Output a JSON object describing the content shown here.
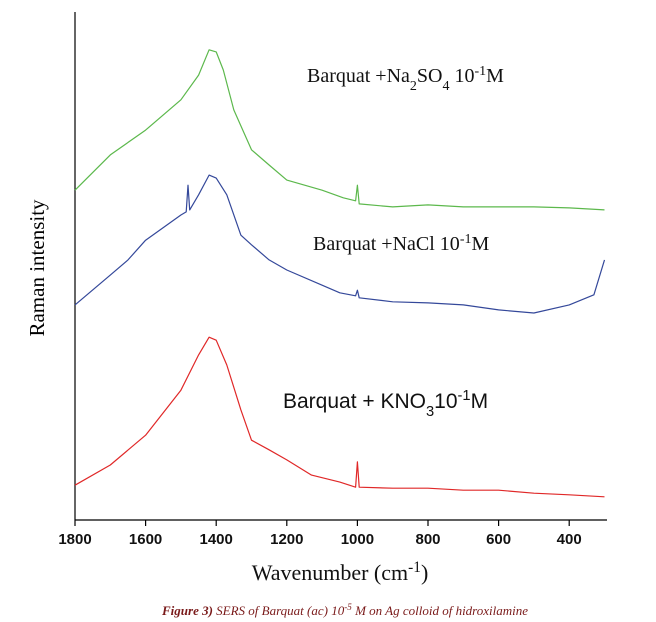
{
  "chart_data": {
    "type": "line",
    "x_label": {
      "parts": [
        {
          "text": "Wavenumber (cm"
        },
        {
          "text": "-1",
          "sup": true
        },
        {
          "text": ")"
        }
      ]
    },
    "y_label": "Raman intensity",
    "xlim": [
      1800,
      300
    ],
    "ylim": [
      0,
      100
    ],
    "xticks": [
      1800,
      1600,
      1400,
      1200,
      1000,
      800,
      600,
      400
    ],
    "series": [
      {
        "color": "#5cb84c",
        "x": [
          1800,
          1700,
          1600,
          1500,
          1450,
          1420,
          1400,
          1380,
          1350,
          1300,
          1250,
          1200,
          1100,
          1040,
          1005,
          1000,
          995,
          900,
          800,
          700,
          600,
          500,
          400,
          300
        ],
        "values": [
          65.3,
          72.3,
          77.2,
          83.2,
          88.1,
          93.1,
          92.7,
          89.1,
          81.2,
          73.3,
          70.3,
          67.3,
          65.3,
          63.8,
          63.2,
          66.3,
          62.6,
          62.0,
          62.4,
          62.0,
          62.0,
          62.0,
          61.8,
          61.4
        ]
      },
      {
        "color": "#34489a",
        "x": [
          1800,
          1700,
          1650,
          1600,
          1500,
          1485,
          1480,
          1475,
          1450,
          1420,
          1400,
          1370,
          1330,
          1300,
          1250,
          1200,
          1100,
          1050,
          1005,
          1000,
          995,
          900,
          800,
          700,
          600,
          500,
          400,
          330,
          300
        ],
        "values": [
          42.6,
          48.5,
          51.5,
          55.4,
          60.4,
          61.0,
          66.3,
          61.4,
          64.4,
          68.3,
          67.7,
          64.4,
          56.4,
          54.5,
          51.5,
          49.5,
          46.5,
          45.0,
          44.4,
          45.5,
          44.0,
          43.2,
          43.0,
          42.6,
          41.6,
          41.0,
          42.6,
          44.6,
          51.5
        ]
      },
      {
        "color": "#e02828",
        "x": [
          1800,
          1700,
          1600,
          1500,
          1450,
          1420,
          1400,
          1370,
          1330,
          1300,
          1250,
          1200,
          1130,
          1050,
          1005,
          1000,
          995,
          900,
          800,
          700,
          600,
          500,
          400,
          300
        ],
        "values": [
          6.9,
          10.9,
          16.8,
          25.7,
          32.7,
          36.2,
          35.6,
          30.7,
          21.8,
          15.8,
          13.9,
          11.9,
          8.9,
          7.5,
          6.5,
          11.5,
          6.5,
          6.3,
          6.3,
          5.9,
          5.9,
          5.3,
          5.0,
          4.6
        ]
      }
    ],
    "annotations": [
      {
        "font": "serif",
        "parts": [
          {
            "text": "Barquat +Na"
          },
          {
            "text": "2",
            "sub": true
          },
          {
            "text": "SO"
          },
          {
            "text": "4",
            "sub": true
          },
          {
            "text": " 10"
          },
          {
            "text": "-1",
            "sup": true
          },
          {
            "text": "M"
          }
        ]
      },
      {
        "font": "serif",
        "parts": [
          {
            "text": "Barquat +NaCl 10"
          },
          {
            "text": "-1",
            "sup": true
          },
          {
            "text": "M"
          }
        ]
      },
      {
        "font": "sans",
        "parts": [
          {
            "text": "Barquat + KNO"
          },
          {
            "text": "3",
            "sub": true
          },
          {
            "text": "10"
          },
          {
            "text": "-1",
            "sup": true
          },
          {
            "text": "M"
          }
        ]
      }
    ],
    "caption": {
      "parts": [
        {
          "text": "Figure 3)",
          "bold": true
        },
        {
          "text": " SERS of Barquat (ac) 10"
        },
        {
          "text": "-5",
          "sup": true
        },
        {
          "text": " M on Ag colloid of hidroxilamine"
        }
      ]
    }
  }
}
